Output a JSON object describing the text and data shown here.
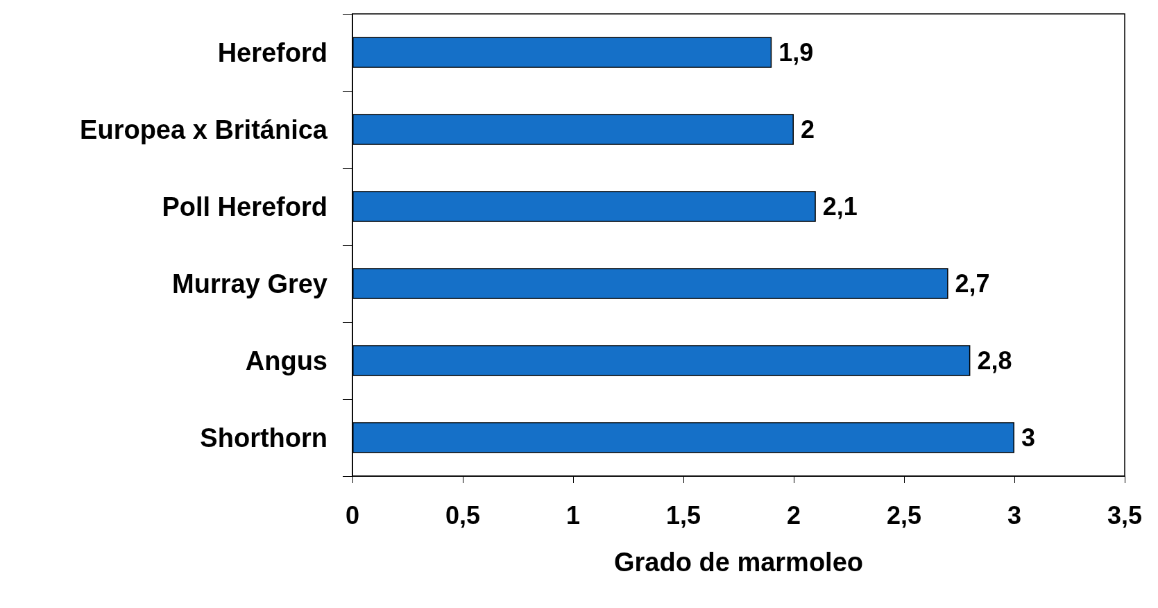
{
  "chart_data": {
    "type": "bar",
    "orientation": "horizontal",
    "xlabel": "Grado de marmoleo",
    "categories": [
      "Hereford",
      "Europea x Británica",
      "Poll Hereford",
      "Murray Grey",
      "Angus",
      "Shorthorn"
    ],
    "values": [
      1.9,
      2,
      2.1,
      2.7,
      2.8,
      3
    ],
    "value_labels": [
      "1,9",
      "2",
      "2,1",
      "2,7",
      "2,8",
      "3"
    ],
    "color": "#1570c8",
    "xlim": [
      0,
      3.5
    ],
    "xticks": [
      0,
      {
        "value": 0.5,
        "label": "0,5"
      },
      1,
      {
        "value": 1.5,
        "label": "1,5"
      },
      2,
      {
        "value": 2.5,
        "label": "2,5"
      },
      3,
      {
        "value": 3.5,
        "label": "3,5"
      }
    ],
    "grid": false
  }
}
